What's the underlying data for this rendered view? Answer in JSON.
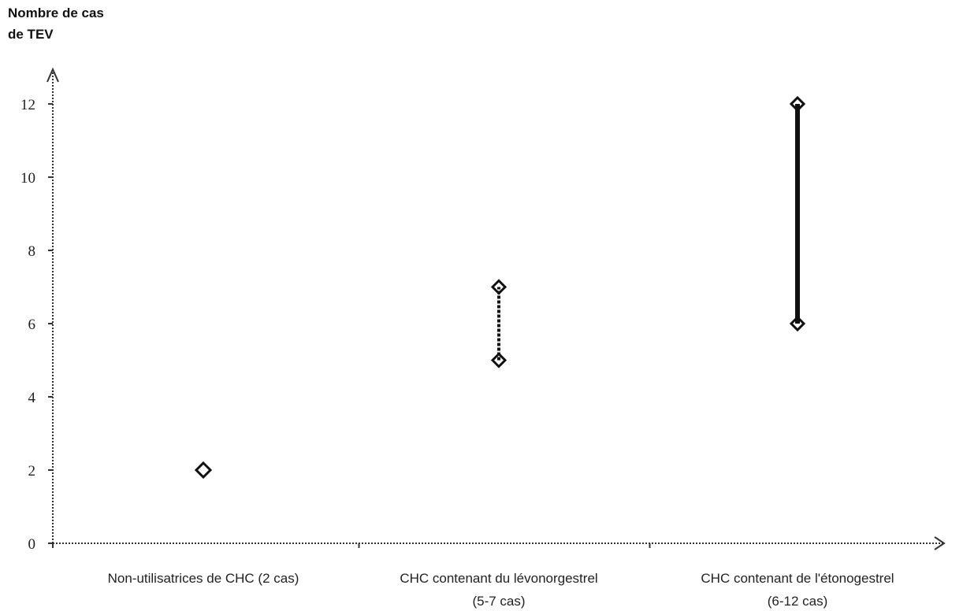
{
  "chart_data": {
    "type": "range",
    "ylabel": [
      "Nombre de cas",
      "de TEV"
    ],
    "yticks": [
      0,
      2,
      4,
      6,
      8,
      10,
      12
    ],
    "ylim": [
      0,
      13
    ],
    "grid": false,
    "legend": "none",
    "categories": [
      {
        "label_lines": [
          "Non-utilisatrices de CHC (2 cas)"
        ],
        "low": 2,
        "high": 2
      },
      {
        "label_lines": [
          "CHC contenant du lévonorgestrel",
          "(5-7 cas)"
        ],
        "low": 5,
        "high": 7
      },
      {
        "label_lines": [
          "CHC contenant de l'étonogestrel",
          "(6-12 cas)"
        ],
        "low": 6,
        "high": 12
      }
    ],
    "colors": {
      "axis": "#333333",
      "marker": "#111111",
      "text": "#222222"
    }
  }
}
